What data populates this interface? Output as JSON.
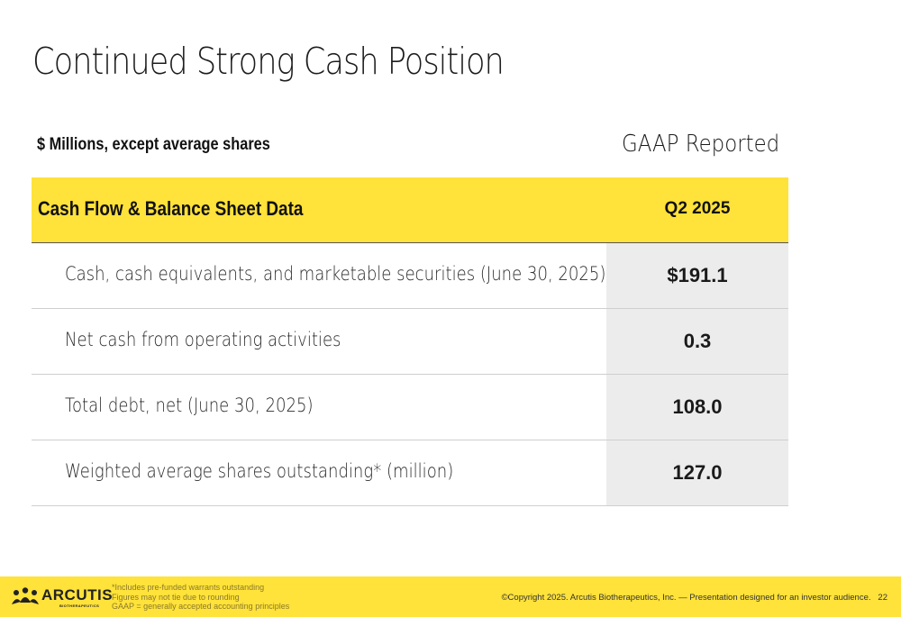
{
  "title": "Continued Strong Cash Position",
  "units_label": "$ Millions, except average shares",
  "gaap_label": "GAAP Reported",
  "table": {
    "header": {
      "label": "Cash Flow & Balance Sheet Data",
      "column": "Q2 2025"
    },
    "rows": [
      {
        "label": "Cash, cash equivalents, and marketable securities (June 30, 2025)",
        "value": "$191.1"
      },
      {
        "label": "Net cash from operating activities",
        "value": "0.3"
      },
      {
        "label": "Total debt, net (June 30, 2025)",
        "value": "108.0"
      },
      {
        "label": "Weighted average shares outstanding* (million)",
        "value": "127.0"
      }
    ]
  },
  "footer": {
    "logo": {
      "name": "ARCUTIS",
      "sub": "BIOTHERAPEUTICS",
      "icon": "arcutis-people-logo-icon"
    },
    "notes": [
      "*Includes pre-funded warrants outstanding",
      "Figures may not tie due to rounding",
      "GAAP = generally accepted accounting principles"
    ],
    "copyright": "©Copyright 2025. Arcutis Biotherapeutics, Inc. —   Presentation designed for an investor audience.",
    "page_number": "22"
  },
  "colors": {
    "accent_yellow": "#ffe23a",
    "value_column_bg": "#ececec",
    "notes_text": "#8a7a2a"
  }
}
